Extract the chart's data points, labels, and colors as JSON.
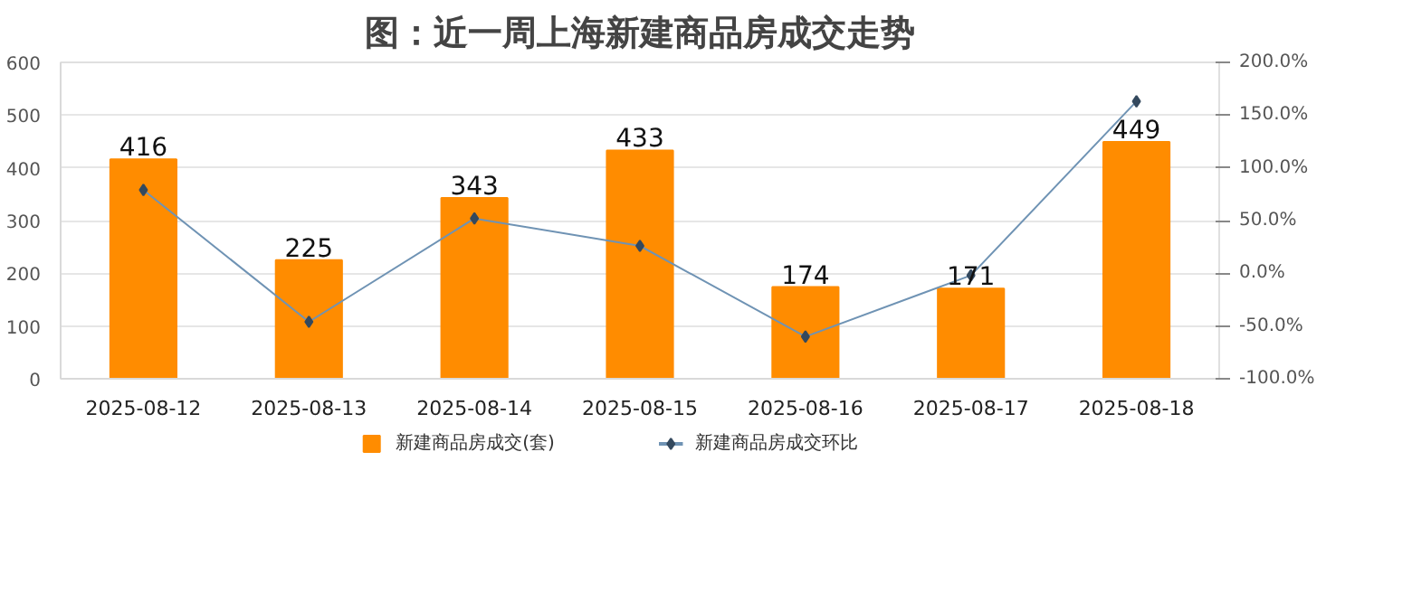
{
  "chart_data": {
    "type": "bar",
    "title": "图：近一周上海新建商品房成交走势",
    "categories": [
      "2025-08-12",
      "2025-08-13",
      "2025-08-14",
      "2025-08-15",
      "2025-08-16",
      "2025-08-17",
      "2025-08-18"
    ],
    "series": [
      {
        "name": "新建商品房成交(套)",
        "color": "#ff8c00",
        "values": [
          416,
          225,
          343,
          433,
          174,
          171,
          449
        ],
        "data_labels": true
      },
      {
        "name": "新建商品房成交环比",
        "type": "line",
        "axis": "y2",
        "color": "#6f93b4",
        "marker": "diamond",
        "values": [
          79,
          -46,
          52,
          26,
          -60,
          -2,
          163
        ]
      }
    ],
    "ylim": [
      0,
      600
    ],
    "yticks": [
      0,
      100,
      200,
      300,
      400,
      500,
      600
    ],
    "y2lim": [
      -100,
      200
    ],
    "y2ticks": [
      {
        "value": -100,
        "label": "-100.0%"
      },
      {
        "value": -50,
        "label": "-50.0%"
      },
      {
        "value": 0,
        "label": "0.0%"
      },
      {
        "value": 50,
        "label": "50.0%"
      },
      {
        "value": 100,
        "label": "100.0%"
      },
      {
        "value": 150,
        "label": "150.0%"
      },
      {
        "value": 200,
        "label": "200.0%"
      }
    ],
    "grid": "y",
    "legend": "bottom"
  }
}
